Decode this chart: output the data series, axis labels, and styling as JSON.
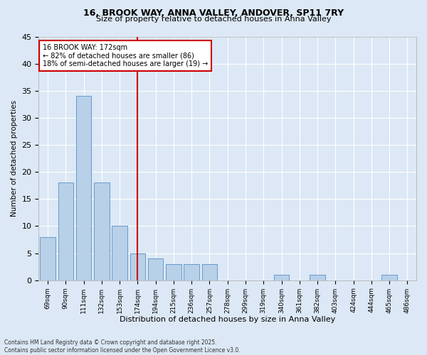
{
  "title1": "16, BROOK WAY, ANNA VALLEY, ANDOVER, SP11 7RY",
  "title2": "Size of property relative to detached houses in Anna Valley",
  "xlabel": "Distribution of detached houses by size in Anna Valley",
  "ylabel": "Number of detached properties",
  "categories": [
    "69sqm",
    "90sqm",
    "111sqm",
    "132sqm",
    "153sqm",
    "174sqm",
    "194sqm",
    "215sqm",
    "236sqm",
    "257sqm",
    "278sqm",
    "299sqm",
    "319sqm",
    "340sqm",
    "361sqm",
    "382sqm",
    "403sqm",
    "424sqm",
    "444sqm",
    "465sqm",
    "486sqm"
  ],
  "values": [
    8,
    18,
    34,
    18,
    10,
    5,
    4,
    3,
    3,
    3,
    0,
    0,
    0,
    1,
    0,
    1,
    0,
    0,
    0,
    1,
    0
  ],
  "bar_color": "#b8d0e8",
  "bar_edge_color": "#6699cc",
  "vline_color": "#cc0000",
  "annotation_title": "16 BROOK WAY: 172sqm",
  "annotation_line1": "← 82% of detached houses are smaller (86)",
  "annotation_line2": "18% of semi-detached houses are larger (19) →",
  "annotation_box_color": "#ffffff",
  "annotation_box_edge": "#cc0000",
  "ylim": [
    0,
    45
  ],
  "yticks": [
    0,
    5,
    10,
    15,
    20,
    25,
    30,
    35,
    40,
    45
  ],
  "footer1": "Contains HM Land Registry data © Crown copyright and database right 2025.",
  "footer2": "Contains public sector information licensed under the Open Government Licence v3.0.",
  "bg_color": "#dce8f5",
  "plot_bg_color": "#dce8f5",
  "grid_color": "#ffffff"
}
